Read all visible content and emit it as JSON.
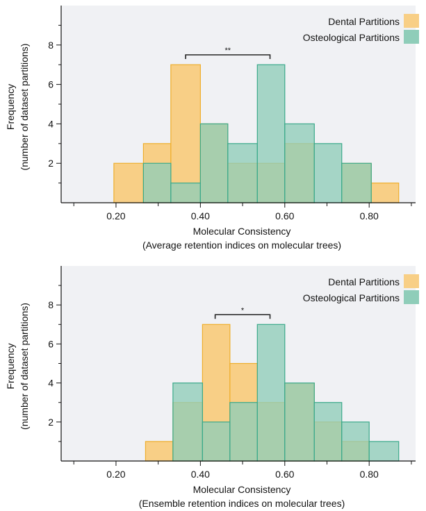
{
  "colors": {
    "background": "#f0f1f4",
    "dental_fill": "#f8cf86",
    "dental_edge": "#eeae2c",
    "osteo_fill": "#8fcdb9",
    "osteo_edge": "#3aa98a",
    "overlap_fill": "#d2c17d",
    "axis": "#111111"
  },
  "chart_data": [
    {
      "type": "histogram",
      "title": "",
      "xlabel": "Molecular Consistency",
      "xlabel2": "(Average retention indices on molecular trees)",
      "ylabel": "Frequency",
      "ylabel2": "(number of dataset partitions)",
      "xlim": [
        0.07,
        0.91
      ],
      "ylim": [
        0,
        10
      ],
      "xticks": [
        0.2,
        0.4,
        0.6,
        0.8
      ],
      "xtick_labels": [
        "0.20",
        "0.40",
        "0.60",
        "0.80"
      ],
      "yticks": [
        2,
        4,
        6,
        8
      ],
      "ytick_labels": [
        "2",
        "4",
        "6",
        "8"
      ],
      "legend_position": "top-right",
      "significance": {
        "label": "**",
        "x1": 0.365,
        "x2": 0.565,
        "y": 7.5
      },
      "series": [
        {
          "name": "Dental Partitions",
          "color_key": "dental",
          "bins": [
            {
              "x0": 0.195,
              "x1": 0.265,
              "count": 2
            },
            {
              "x0": 0.265,
              "x1": 0.33,
              "count": 3
            },
            {
              "x0": 0.33,
              "x1": 0.4,
              "count": 7
            },
            {
              "x0": 0.4,
              "x1": 0.465,
              "count": 4
            },
            {
              "x0": 0.465,
              "x1": 0.535,
              "count": 2
            },
            {
              "x0": 0.535,
              "x1": 0.6,
              "count": 2
            },
            {
              "x0": 0.6,
              "x1": 0.67,
              "count": 3
            },
            {
              "x0": 0.67,
              "x1": 0.735,
              "count": 0
            },
            {
              "x0": 0.735,
              "x1": 0.805,
              "count": 2
            },
            {
              "x0": 0.805,
              "x1": 0.87,
              "count": 1
            }
          ]
        },
        {
          "name": "Osteological Partitions",
          "color_key": "osteo",
          "bins": [
            {
              "x0": 0.265,
              "x1": 0.33,
              "count": 2
            },
            {
              "x0": 0.33,
              "x1": 0.4,
              "count": 1
            },
            {
              "x0": 0.4,
              "x1": 0.465,
              "count": 4
            },
            {
              "x0": 0.465,
              "x1": 0.535,
              "count": 3
            },
            {
              "x0": 0.535,
              "x1": 0.6,
              "count": 7
            },
            {
              "x0": 0.6,
              "x1": 0.67,
              "count": 4
            },
            {
              "x0": 0.67,
              "x1": 0.735,
              "count": 3
            },
            {
              "x0": 0.735,
              "x1": 0.805,
              "count": 2
            }
          ]
        }
      ]
    },
    {
      "type": "histogram",
      "title": "",
      "xlabel": "Molecular Consistency",
      "xlabel2": "(Ensemble retention indices on molecular trees)",
      "ylabel": "Frequency",
      "ylabel2": "(number of dataset partitions)",
      "xlim": [
        0.07,
        0.91
      ],
      "ylim": [
        0,
        10
      ],
      "xticks": [
        0.2,
        0.4,
        0.6,
        0.8
      ],
      "xtick_labels": [
        "0.20",
        "0.40",
        "0.60",
        "0.80"
      ],
      "yticks": [
        2,
        4,
        6,
        8
      ],
      "ytick_labels": [
        "2",
        "4",
        "6",
        "8"
      ],
      "legend_position": "top-right",
      "significance": {
        "label": "*",
        "x1": 0.435,
        "x2": 0.565,
        "y": 7.5
      },
      "series": [
        {
          "name": "Dental Partitions",
          "color_key": "dental",
          "bins": [
            {
              "x0": 0.27,
              "x1": 0.335,
              "count": 1
            },
            {
              "x0": 0.335,
              "x1": 0.405,
              "count": 3
            },
            {
              "x0": 0.405,
              "x1": 0.47,
              "count": 7
            },
            {
              "x0": 0.47,
              "x1": 0.535,
              "count": 5
            },
            {
              "x0": 0.535,
              "x1": 0.6,
              "count": 3
            },
            {
              "x0": 0.6,
              "x1": 0.67,
              "count": 4
            },
            {
              "x0": 0.67,
              "x1": 0.735,
              "count": 2
            },
            {
              "x0": 0.735,
              "x1": 0.8,
              "count": 1
            }
          ]
        },
        {
          "name": "Osteological Partitions",
          "color_key": "osteo",
          "bins": [
            {
              "x0": 0.335,
              "x1": 0.405,
              "count": 4
            },
            {
              "x0": 0.405,
              "x1": 0.47,
              "count": 2
            },
            {
              "x0": 0.47,
              "x1": 0.535,
              "count": 3
            },
            {
              "x0": 0.535,
              "x1": 0.6,
              "count": 7
            },
            {
              "x0": 0.6,
              "x1": 0.67,
              "count": 4
            },
            {
              "x0": 0.67,
              "x1": 0.735,
              "count": 3
            },
            {
              "x0": 0.735,
              "x1": 0.8,
              "count": 2
            },
            {
              "x0": 0.8,
              "x1": 0.87,
              "count": 1
            }
          ]
        }
      ]
    }
  ]
}
